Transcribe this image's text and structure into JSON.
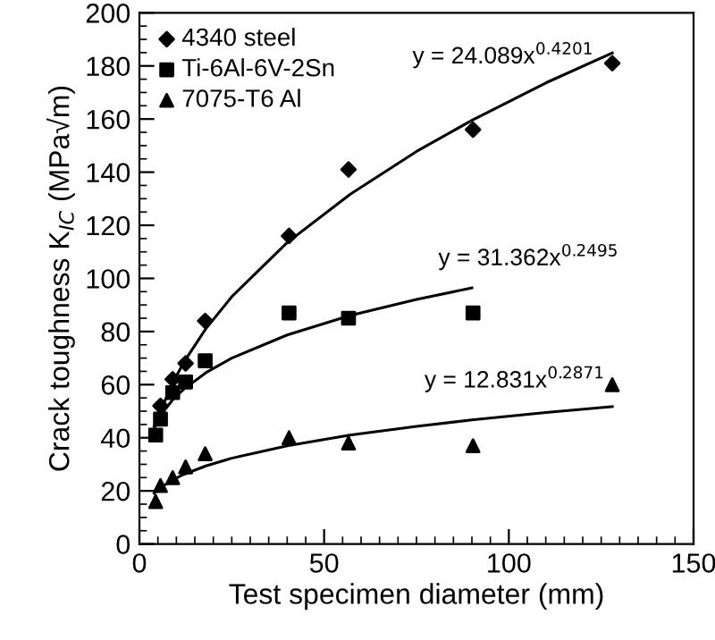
{
  "chart_data": {
    "type": "scatter",
    "xlabel": "Test specimen diameter (mm)",
    "ylabel": "Crack toughness K$_{IC}$ (MPa√m)",
    "xlim": [
      0,
      150
    ],
    "xticks": [
      0,
      50,
      100,
      150
    ],
    "ylim": [
      0,
      200
    ],
    "yticks": [
      0,
      20,
      40,
      60,
      80,
      100,
      120,
      140,
      160,
      180,
      200
    ],
    "grid": false,
    "legend": "top left",
    "series": [
      {
        "name": "4340 steel",
        "marker": "diamond",
        "color": "#000000",
        "x": [
          5.7,
          9,
          12.5,
          17.8,
          40.5,
          56.6,
          90.3,
          128
        ],
        "values": [
          52,
          62,
          68,
          84,
          116,
          141,
          156,
          181
        ]
      },
      {
        "name": "Ti-6Al-6V-2Sn",
        "marker": "square",
        "color": "#000000",
        "x": [
          4.4,
          5.7,
          9,
          12.5,
          17.8,
          40.5,
          56.6,
          90.3
        ],
        "values": [
          41,
          47,
          57,
          61,
          69,
          87,
          85,
          87
        ]
      },
      {
        "name": "7075-T6 Al",
        "marker": "triangle",
        "color": "#000000",
        "x": [
          4.4,
          5.7,
          9,
          12.5,
          17.8,
          40.5,
          56.6,
          90.3,
          128
        ],
        "values": [
          16,
          22,
          25,
          29,
          34,
          40,
          38,
          37,
          60
        ]
      },
      {
        "type": "line",
        "color": "#000000",
        "x": [
          4,
          6,
          9,
          12,
          18,
          25,
          40,
          57,
          75,
          90,
          110,
          128
        ],
        "values": [
          43.1,
          51.1,
          60.6,
          68.4,
          81.1,
          93.1,
          113.5,
          131.6,
          147.8,
          159.5,
          173.6,
          184.9
        ]
      },
      {
        "type": "line",
        "color": "#000000",
        "x": [
          4,
          6,
          9,
          12,
          18,
          25,
          40,
          57,
          75,
          90
        ],
        "values": [
          44.3,
          49.0,
          54.3,
          58.3,
          64.5,
          70.0,
          78.7,
          86.0,
          92.1,
          96.4
        ]
      },
      {
        "type": "line",
        "color": "#000000",
        "x": [
          4,
          6,
          9,
          12,
          18,
          25,
          40,
          57,
          75,
          90,
          110,
          128
        ],
        "values": [
          19.1,
          21.5,
          24.1,
          26.2,
          29.4,
          32.3,
          37.0,
          41.0,
          44.3,
          46.7,
          49.5,
          51.7
        ]
      }
    ],
    "annotations": [
      "y = 24.089x$^{0.4201}$",
      "y = 31.362x$^{0.2495}$",
      "y = 12.831x$^{0.2871}$"
    ]
  }
}
